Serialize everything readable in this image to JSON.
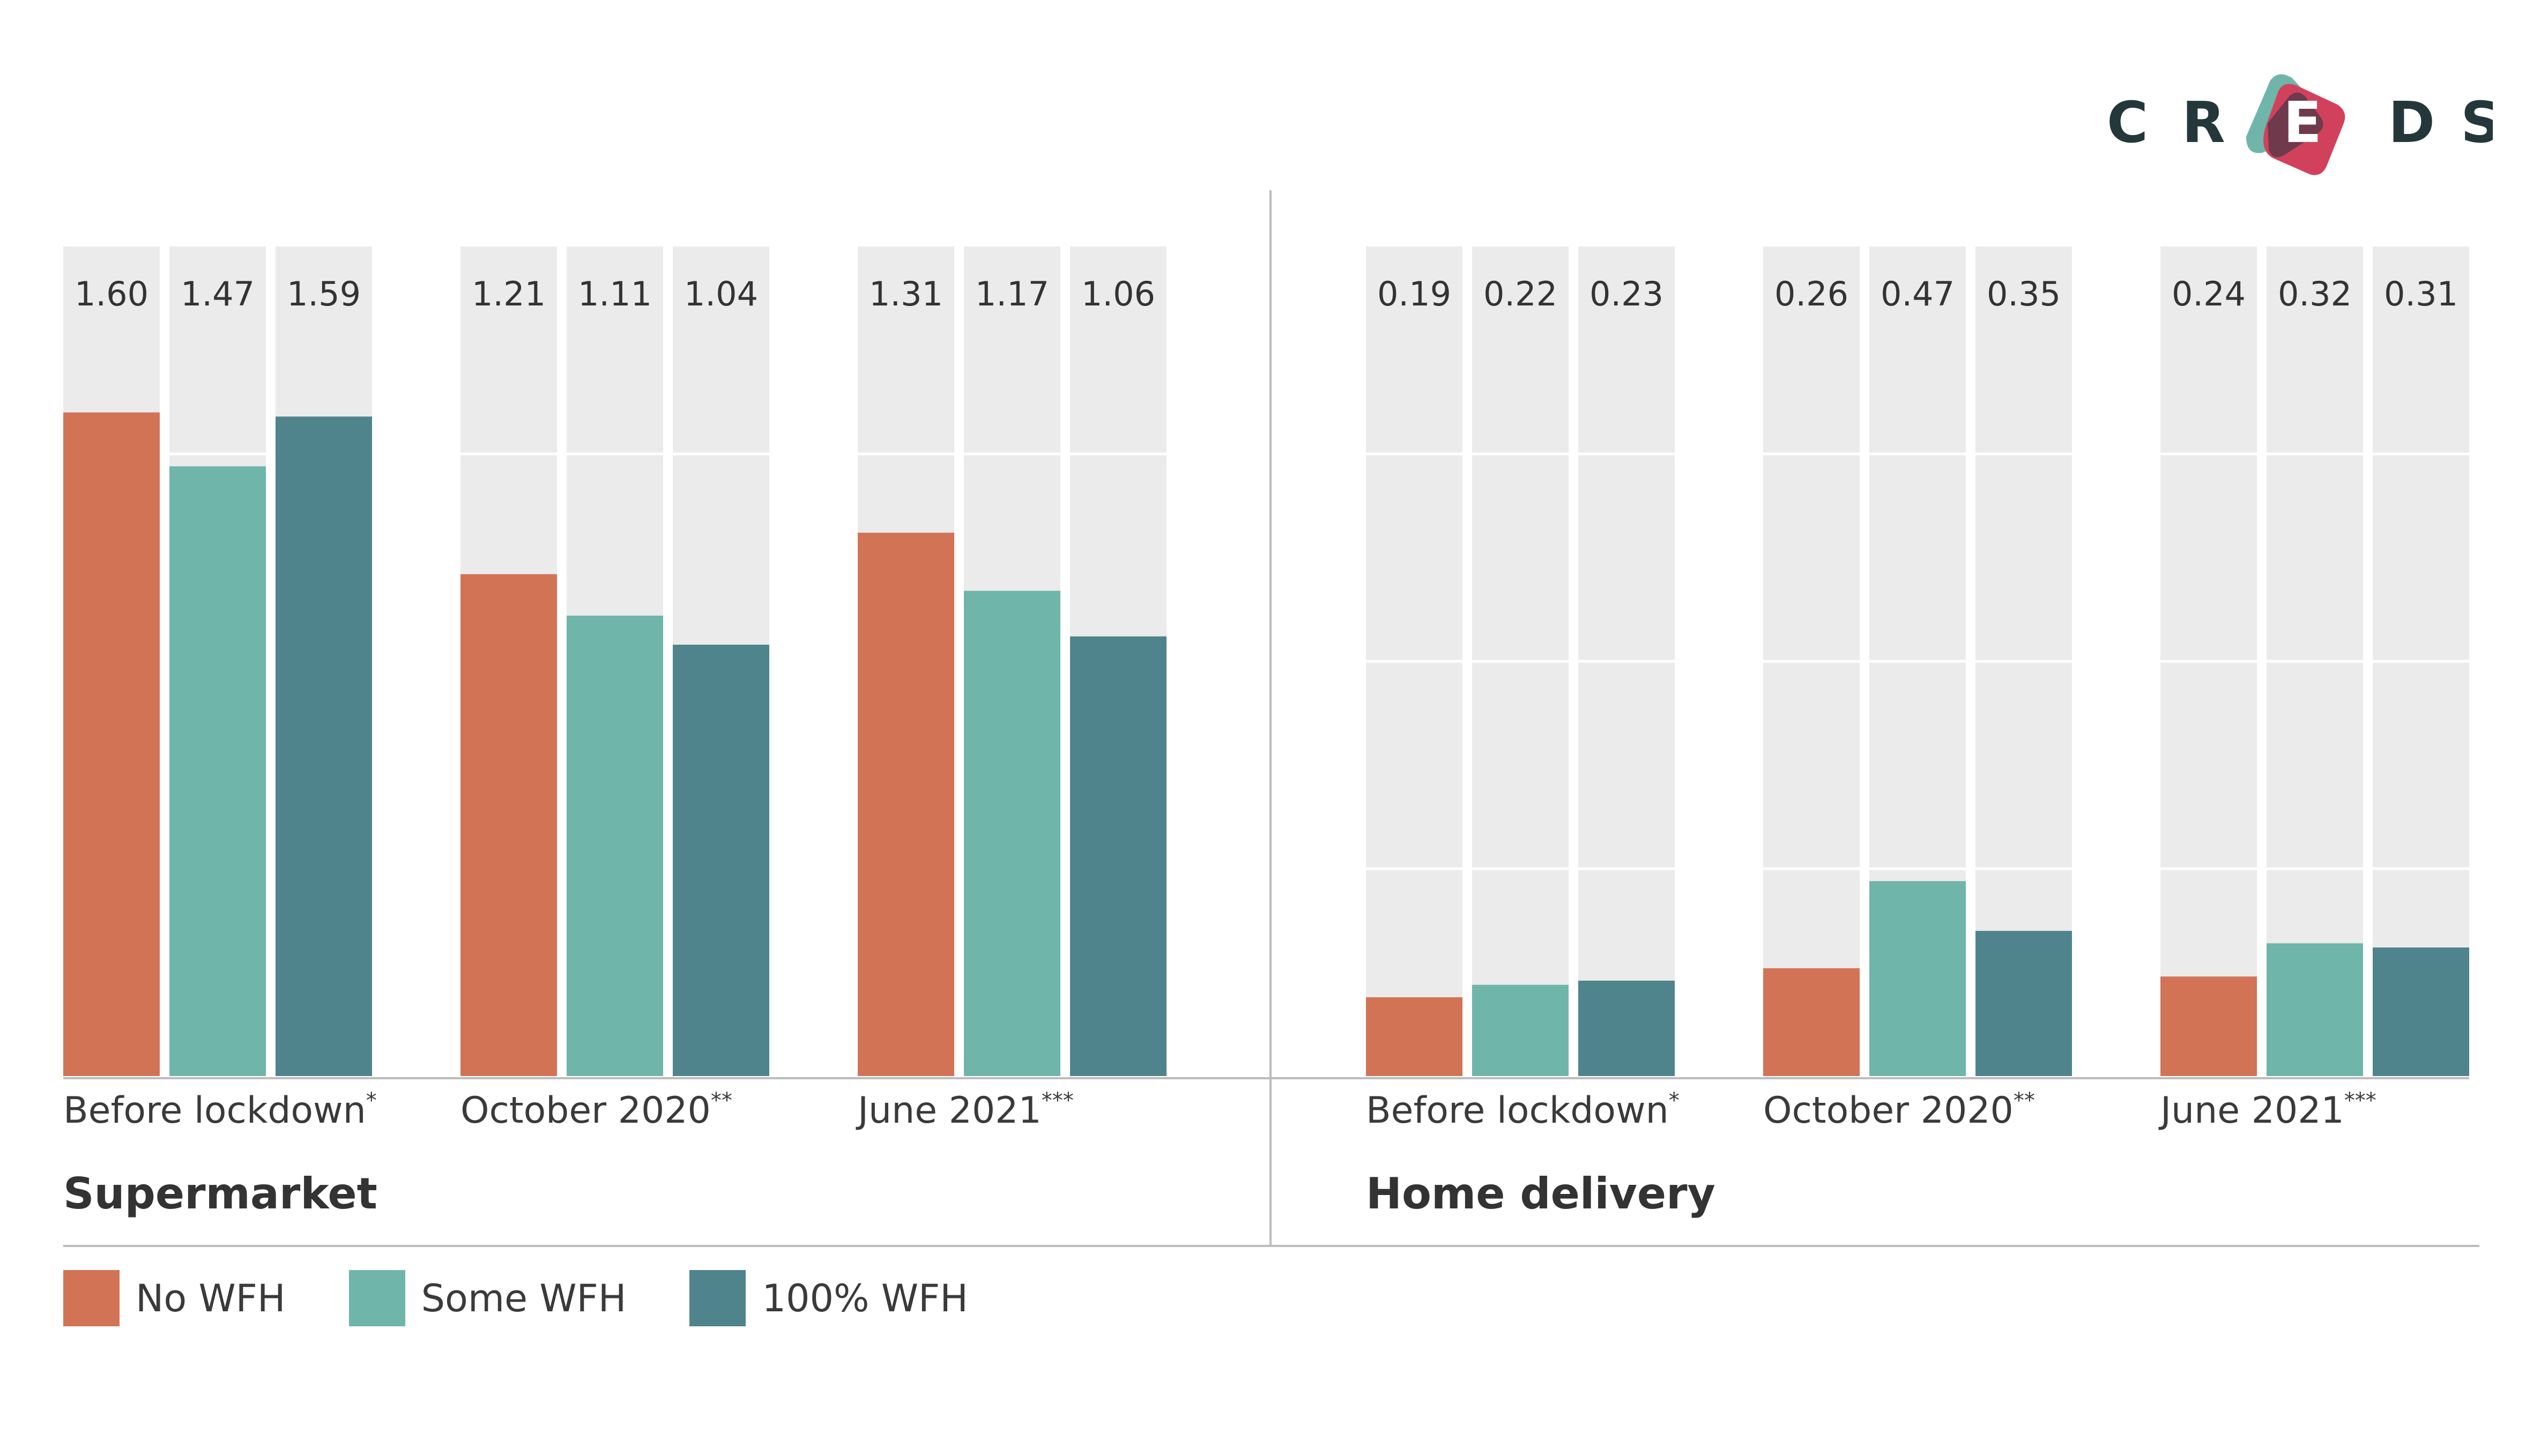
{
  "chart_data": [
    {
      "type": "bar",
      "title": "Supermarket",
      "categories": [
        "Before lockdown",
        "October 2020",
        "June 2021"
      ],
      "category_marks": [
        "*",
        "**",
        "***"
      ],
      "ylim": [
        0,
        2.0
      ],
      "grid": true,
      "series": [
        {
          "name": "No WFH",
          "values": [
            1.6,
            1.21,
            1.31
          ]
        },
        {
          "name": "Some WFH",
          "values": [
            1.47,
            1.11,
            1.17
          ]
        },
        {
          "name": "100% WFH",
          "values": [
            1.59,
            1.04,
            1.06
          ]
        }
      ],
      "value_labels": [
        [
          "1.60",
          "1.47",
          "1.59"
        ],
        [
          "1.21",
          "1.11",
          "1.04"
        ],
        [
          "1.31",
          "1.17",
          "1.06"
        ]
      ]
    },
    {
      "type": "bar",
      "title": "Home delivery",
      "categories": [
        "Before lockdown",
        "October 2020",
        "June 2021"
      ],
      "category_marks": [
        "*",
        "**",
        "***"
      ],
      "ylim": [
        0,
        2.0
      ],
      "grid": true,
      "series": [
        {
          "name": "No WFH",
          "values": [
            0.19,
            0.26,
            0.24
          ]
        },
        {
          "name": "Some WFH",
          "values": [
            0.22,
            0.47,
            0.32
          ]
        },
        {
          "name": "100% WFH",
          "values": [
            0.23,
            0.35,
            0.31
          ]
        }
      ],
      "value_labels": [
        [
          "0.19",
          "0.22",
          "0.23"
        ],
        [
          "0.26",
          "0.47",
          "0.35"
        ],
        [
          "0.24",
          "0.32",
          "0.31"
        ]
      ]
    }
  ],
  "legend": [
    {
      "label": "No WFH",
      "color": "#d27356"
    },
    {
      "label": "Some WFH",
      "color": "#6fb5aa"
    },
    {
      "label": "100% WFH",
      "color": "#4f848c"
    }
  ],
  "colors": {
    "no_wfh": "#d27356",
    "some_wfh": "#6fb5aa",
    "full_wfh": "#4f848c",
    "column_bg": "#ebebeb",
    "axis": "#bcbcbc",
    "logo_dark": "#24373a",
    "logo_red": "#d2415c",
    "logo_teal": "#6fb5aa",
    "logo_plum": "#6e3a4c"
  },
  "logo": {
    "letters": [
      "C",
      "R",
      "E",
      "D",
      "S"
    ]
  }
}
